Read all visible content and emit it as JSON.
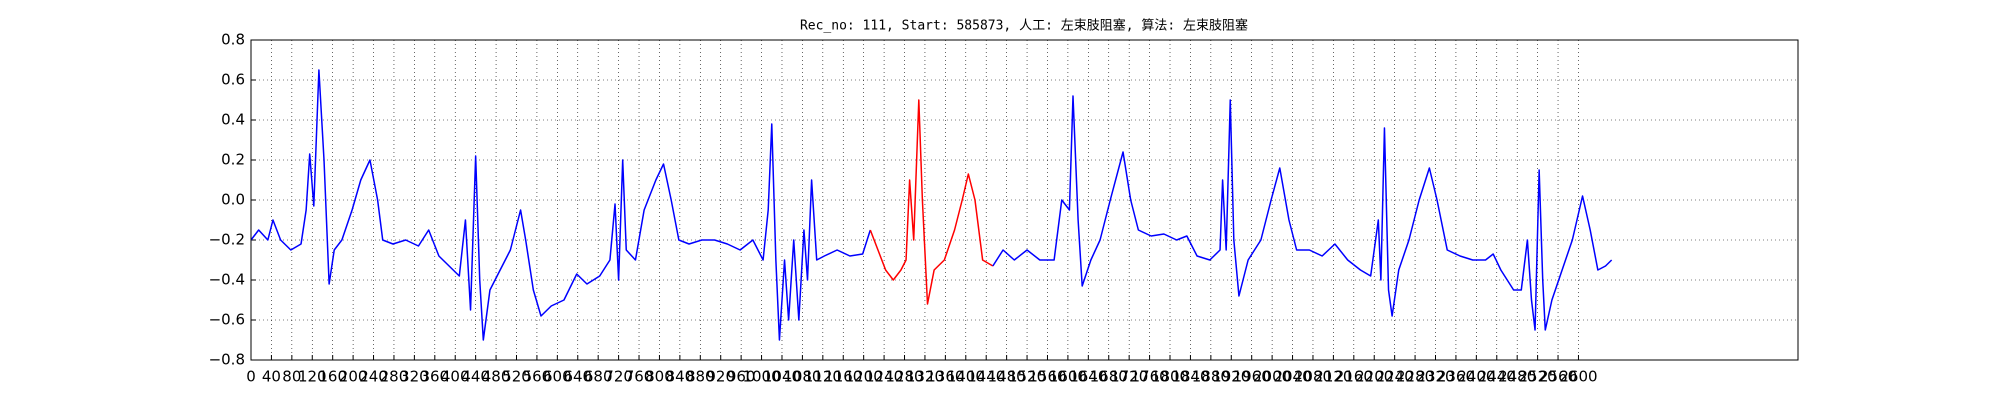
{
  "chart_data": {
    "type": "line",
    "title": "Rec_no: 111, Start: 585873, 人工: 左束肢阻塞, 算法: 左束肢阻塞",
    "xlim": [
      0,
      3030
    ],
    "ylim": [
      -0.8,
      0.8
    ],
    "xticks": [
      0,
      40,
      80,
      120,
      160,
      200,
      240,
      280,
      320,
      360,
      400,
      440,
      480,
      520,
      560,
      600,
      640,
      680,
      720,
      760,
      800,
      840,
      880,
      920,
      960,
      1000,
      1040,
      1080,
      1120,
      1160,
      1200,
      1240,
      1280,
      1320,
      1360,
      1400,
      1440,
      1480,
      1520,
      1560,
      1600,
      1640,
      1680,
      1720,
      1760,
      1800,
      1840,
      1880,
      1920,
      1960,
      2000,
      2040,
      2080,
      2120,
      2160,
      2200,
      2240,
      2280,
      2320,
      2360,
      2400,
      2440,
      2480,
      2520,
      2560,
      2600
    ],
    "yticks": [
      {
        "value": -0.8,
        "label": "−0.8"
      },
      {
        "value": -0.6,
        "label": "−0.6"
      },
      {
        "value": -0.4,
        "label": "−0.4"
      },
      {
        "value": -0.2,
        "label": "−0.2"
      },
      {
        "value": 0,
        "label": "0.0"
      },
      0.2,
      0.4,
      0.6,
      0.8
    ],
    "grid": true,
    "series": [
      {
        "color": "#0000ff",
        "x": [
          0,
          15,
          33,
          43,
          58,
          78,
          98,
          108,
          115,
          123,
          133,
          143,
          153,
          163,
          178,
          198,
          215,
          233,
          248,
          258,
          278,
          303,
          328,
          348,
          368,
          388,
          408,
          420,
          430,
          440,
          448,
          455,
          468,
          488,
          508,
          528,
          538,
          553,
          568,
          588,
          613,
          638,
          658,
          683,
          703,
          713,
          720,
          728,
          735,
          753,
          770,
          793,
          808,
          823,
          838,
          858,
          883,
          908,
          933,
          958,
          983,
          1003,
          1013,
          1020,
          1028,
          1035,
          1045,
          1053,
          1063,
          1073,
          1083,
          1090,
          1098,
          1108,
          1123,
          1148,
          1173,
          1198,
          1213
        ],
        "values": [
          -0.2,
          -0.15,
          -0.2,
          -0.1,
          -0.2,
          -0.25,
          -0.22,
          -0.05,
          0.23,
          -0.03,
          0.65,
          0.2,
          -0.42,
          -0.25,
          -0.2,
          -0.05,
          0.1,
          0.2,
          0.0,
          -0.2,
          -0.22,
          -0.2,
          -0.23,
          -0.15,
          -0.28,
          -0.33,
          -0.38,
          -0.1,
          -0.55,
          0.22,
          -0.4,
          -0.7,
          -0.45,
          -0.35,
          -0.25,
          -0.05,
          -0.2,
          -0.45,
          -0.58,
          -0.53,
          -0.5,
          -0.37,
          -0.42,
          -0.38,
          -0.3,
          -0.02,
          -0.4,
          0.2,
          -0.25,
          -0.3,
          -0.05,
          0.1,
          0.18,
          0.0,
          -0.2,
          -0.22,
          -0.2,
          -0.2,
          -0.22,
          -0.25,
          -0.2,
          -0.3,
          -0.05,
          0.38,
          -0.3,
          -0.7,
          -0.3,
          -0.6,
          -0.2,
          -0.6,
          -0.15,
          -0.4,
          0.1,
          -0.3,
          -0.28,
          -0.25,
          -0.28,
          -0.27,
          -0.15
        ]
      },
      {
        "color": "#ff0000",
        "x": [
          1213,
          1228,
          1243,
          1258,
          1273,
          1283,
          1290,
          1298,
          1308,
          1315,
          1325,
          1338,
          1358,
          1378,
          1393,
          1405,
          1418,
          1433,
          1453
        ],
        "values": [
          -0.15,
          -0.25,
          -0.35,
          -0.4,
          -0.35,
          -0.3,
          0.1,
          -0.2,
          0.5,
          0.0,
          -0.52,
          -0.35,
          -0.3,
          -0.15,
          0.0,
          0.13,
          0.0,
          -0.3,
          -0.33
        ]
      },
      {
        "color": "#0000ff",
        "x": [
          1453,
          1473,
          1495,
          1520,
          1545,
          1573,
          1588,
          1603,
          1610,
          1620,
          1628,
          1645,
          1663,
          1683,
          1708,
          1723,
          1738,
          1763,
          1788,
          1813,
          1833,
          1853,
          1878,
          1898,
          1903,
          1910,
          1918,
          1925,
          1935,
          1953,
          1978,
          1998,
          2015,
          2033,
          2048,
          2073,
          2098,
          2123,
          2148,
          2173,
          2193,
          2208,
          2213,
          2220,
          2228,
          2235,
          2248,
          2268,
          2288,
          2308,
          2323,
          2343,
          2368,
          2393,
          2418,
          2433,
          2448,
          2473,
          2488,
          2500,
          2508,
          2515,
          2523,
          2530,
          2535,
          2548,
          2568,
          2588,
          2608,
          2623,
          2638,
          2653,
          2665
        ],
        "values": [
          -0.33,
          -0.25,
          -0.3,
          -0.25,
          -0.3,
          -0.3,
          0.0,
          -0.05,
          0.52,
          -0.1,
          -0.43,
          -0.3,
          -0.2,
          0.0,
          0.24,
          0.0,
          -0.15,
          -0.18,
          -0.17,
          -0.2,
          -0.18,
          -0.28,
          -0.3,
          -0.25,
          0.1,
          -0.25,
          0.5,
          -0.2,
          -0.48,
          -0.3,
          -0.2,
          0.0,
          0.16,
          -0.1,
          -0.25,
          -0.25,
          -0.28,
          -0.22,
          -0.3,
          -0.35,
          -0.38,
          -0.1,
          -0.4,
          0.36,
          -0.45,
          -0.58,
          -0.35,
          -0.2,
          0.0,
          0.16,
          0.0,
          -0.25,
          -0.28,
          -0.3,
          -0.3,
          -0.27,
          -0.35,
          -0.45,
          -0.45,
          -0.2,
          -0.5,
          -0.65,
          0.15,
          -0.4,
          -0.65,
          -0.5,
          -0.35,
          -0.2,
          0.02,
          -0.15,
          -0.35,
          -0.33,
          -0.3
        ]
      }
    ]
  }
}
